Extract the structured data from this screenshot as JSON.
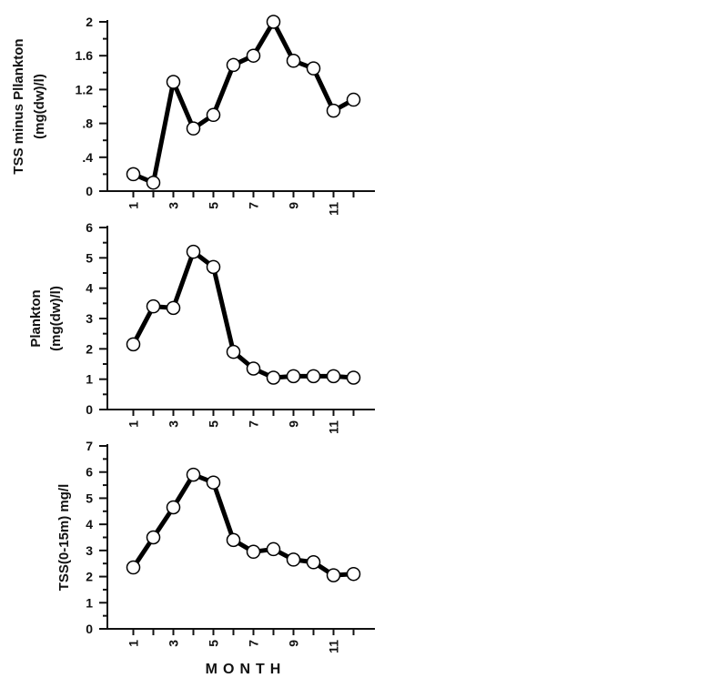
{
  "chart_data": [
    {
      "type": "line",
      "ylabel": [
        "TSS minus Pllankton",
        "(mg(dw)/l)"
      ],
      "x": [
        1,
        2,
        3,
        4,
        5,
        6,
        7,
        8,
        9,
        10,
        11,
        12
      ],
      "values": [
        0.2,
        0.1,
        1.29,
        0.74,
        0.9,
        1.49,
        1.6,
        2.0,
        1.54,
        1.45,
        0.95,
        1.08
      ],
      "ylim": [
        0,
        2
      ],
      "yticks": [
        0,
        0.4,
        0.8,
        1.2,
        1.6,
        2
      ],
      "ytick_labels": [
        "0",
        ".4",
        ".8",
        "1.2",
        "1.6",
        "2"
      ],
      "xtick_labels": [
        "1",
        "3",
        "5",
        "7",
        "9",
        "11"
      ],
      "grid": false
    },
    {
      "type": "line",
      "ylabel": [
        "Plankton",
        "(mg(dw)/l)"
      ],
      "x": [
        1,
        2,
        3,
        4,
        5,
        6,
        7,
        8,
        9,
        10,
        11,
        12
      ],
      "values": [
        2.15,
        3.4,
        3.35,
        5.2,
        4.7,
        1.9,
        1.35,
        1.05,
        1.1,
        1.1,
        1.1,
        1.05
      ],
      "ylim": [
        0,
        6
      ],
      "yticks": [
        0,
        1,
        2,
        3,
        4,
        5,
        6
      ],
      "ytick_labels": [
        "0",
        "1",
        "2",
        "3",
        "4",
        "5",
        "6"
      ],
      "xtick_labels": [
        "1",
        "3",
        "5",
        "7",
        "9",
        "11"
      ],
      "grid": false
    },
    {
      "type": "line",
      "ylabel": [
        "TSS(0-15m) mg/l"
      ],
      "x": [
        1,
        2,
        3,
        4,
        5,
        6,
        7,
        8,
        9,
        10,
        11,
        12
      ],
      "values": [
        2.35,
        3.5,
        4.65,
        5.9,
        5.6,
        3.4,
        2.95,
        3.05,
        2.65,
        2.55,
        2.05,
        2.1
      ],
      "ylim": [
        0,
        7
      ],
      "yticks": [
        0,
        1,
        2,
        3,
        4,
        5,
        6,
        7
      ],
      "ytick_labels": [
        "0",
        "1",
        "2",
        "3",
        "4",
        "5",
        "6",
        "7"
      ],
      "xtick_labels": [
        "1",
        "3",
        "5",
        "7",
        "9",
        "11"
      ],
      "xlabel": "MONTH",
      "grid": false
    }
  ]
}
